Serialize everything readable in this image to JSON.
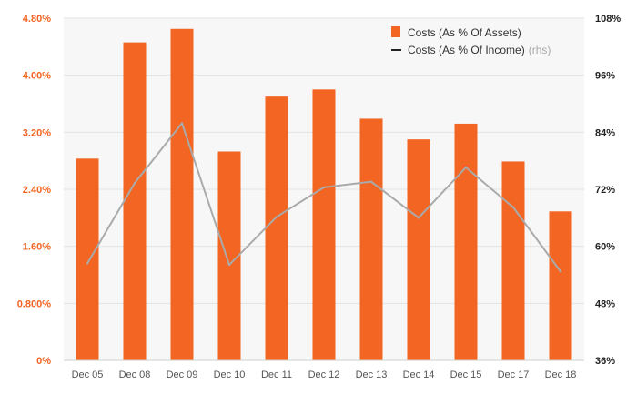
{
  "chart_data": {
    "type": "bar",
    "categories": [
      "Dec 05",
      "Dec 08",
      "Dec 09",
      "Dec 10",
      "Dec 11",
      "Dec 12",
      "Dec 13",
      "Dec 14",
      "Dec 15",
      "Dec 17",
      "Dec 18"
    ],
    "series": [
      {
        "name": "Costs (As % Of Assets)",
        "type": "bar",
        "axis": "left",
        "values": [
          2.83,
          4.46,
          4.65,
          2.93,
          3.7,
          3.8,
          3.39,
          3.1,
          3.32,
          2.79,
          2.09
        ]
      },
      {
        "name": "Costs (As % Of Income)",
        "type": "line",
        "axis": "right",
        "values": [
          56.4,
          73.3,
          85.9,
          56.1,
          66.2,
          72.4,
          73.6,
          66.0,
          76.6,
          68.2,
          54.7
        ]
      }
    ],
    "y_left": {
      "ylim": [
        0,
        4.8
      ],
      "ticks": [
        0,
        0.8,
        1.6,
        2.4,
        3.2,
        4.0,
        4.8
      ],
      "tick_labels": [
        "0%",
        "0.800%",
        "1.60%",
        "2.40%",
        "3.20%",
        "4.00%",
        "4.80%"
      ]
    },
    "y_right": {
      "ylim": [
        36,
        108
      ],
      "ticks": [
        36,
        48,
        60,
        72,
        84,
        96,
        108
      ],
      "tick_labels": [
        "36%",
        "48%",
        "60%",
        "72%",
        "84%",
        "96%",
        "108%"
      ]
    },
    "legend": {
      "placement": "top-right",
      "entries": [
        "Costs (As % Of Assets)",
        "Costs (As % Of Income)"
      ],
      "rhs_note": "(rhs)"
    },
    "title": "",
    "xlabel": "",
    "grid": "horizontal"
  },
  "colors": {
    "bar": "#f26522",
    "line": "#aaaaaa",
    "line_legend": "#222222",
    "grid": "#e3e3e3",
    "plot_bg": "#f7f7f7",
    "left_axis_text": "#f26522",
    "right_axis_text": "#222222"
  }
}
